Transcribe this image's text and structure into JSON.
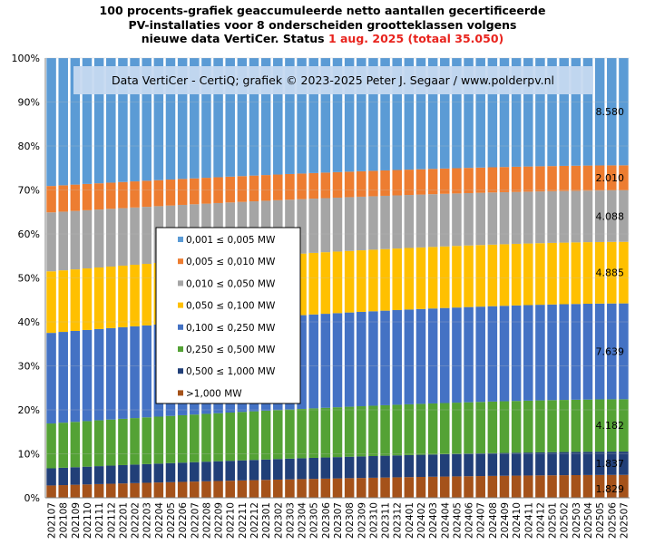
{
  "title": {
    "line1": "100 procents-grafiek geaccumuleerde netto aantallen gecertificeerde",
    "line2": "PV-installaties voor 8 onderscheiden grootteklassen volgens",
    "line3_prefix": "nieuwe data VertiCer. Status ",
    "line3_date": "1 aug. 2025",
    "line3_total": "(totaal 35.050)"
  },
  "credit": "Data VertiCer - CertiQ; grafiek © 2023-2025 Peter J. Segaar / www.polderpv.nl",
  "colors": {
    "credit_bg": "#c6d9f0",
    "highlight_red": "#e8231d",
    "grid": "#c0c0c0"
  },
  "chart_data": {
    "type": "bar",
    "stacked": true,
    "percent": true,
    "categories": [
      "202107",
      "202108",
      "202109",
      "202110",
      "202111",
      "202112",
      "202201",
      "202202",
      "202203",
      "202204",
      "202205",
      "202206",
      "202207",
      "202208",
      "202209",
      "202210",
      "202211",
      "202212",
      "202301",
      "202302",
      "202303",
      "202304",
      "202305",
      "202306",
      "202307",
      "202308",
      "202309",
      "202310",
      "202311",
      "202312",
      "202401",
      "202402",
      "202403",
      "202404",
      "202405",
      "202406",
      "202407",
      "202408",
      "202409",
      "202410",
      "202411",
      "202412",
      "202501",
      "202502",
      "202503",
      "202504",
      "202505",
      "202506",
      "202507"
    ],
    "yticks": [
      "0%",
      "10%",
      "20%",
      "30%",
      "40%",
      "50%",
      "60%",
      "70%",
      "80%",
      "90%",
      "100%"
    ],
    "ylim": [
      0,
      100
    ],
    "grid": true,
    "legend_position": "center-left",
    "series": [
      {
        "name": ">1,000 MW",
        "color": "#a5521a",
        "start": 2.8,
        "end": 5.2
      },
      {
        "name": "0,500 ≤ 1,000 MW",
        "color": "#213f78",
        "start": 3.9,
        "end": 5.3
      },
      {
        "name": "0,250 ≤ 0,500 MW",
        "color": "#54a235",
        "start": 10.2,
        "end": 11.9
      },
      {
        "name": "0,100 ≤ 0,250 MW",
        "color": "#4472c4",
        "start": 20.6,
        "end": 21.8
      },
      {
        "name": "0,050 ≤ 0,100 MW",
        "color": "#ffc000",
        "start": 14.0,
        "end": 14.0
      },
      {
        "name": "0,010 ≤ 0,050 MW",
        "color": "#a5a5a5",
        "start": 13.4,
        "end": 11.7
      },
      {
        "name": "0,005 ≤ 0,010 MW",
        "color": "#ed7d31",
        "start": 6.0,
        "end": 5.7
      },
      {
        "name": "0,001 ≤ 0,005 MW",
        "color": "#5b9bd5",
        "start": 29.1,
        "end": 24.4
      }
    ],
    "end_labels": [
      "1.829",
      "1.837",
      "4.182",
      "7.639",
      "4.885",
      "4.088",
      "2.010",
      "8.580"
    ]
  }
}
